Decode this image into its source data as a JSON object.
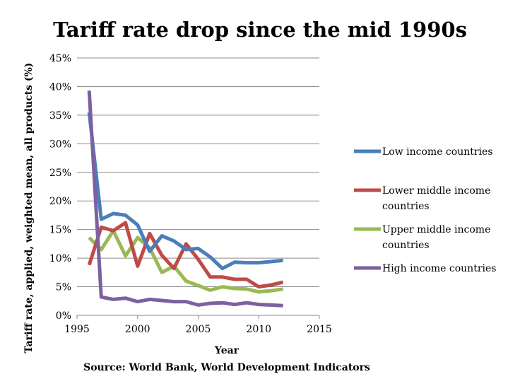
{
  "chart_data": {
    "type": "line",
    "title": "Tariff rate drop since the mid 1990s",
    "xlabel": "Year",
    "ylabel": "Tariff rate, applied, weighted mean, all products (%)",
    "source": "Source: World Bank, World Development Indicators",
    "xlim": [
      1995,
      2015
    ],
    "ylim": [
      0,
      45
    ],
    "x_ticks": [
      1995,
      2000,
      2005,
      2010,
      2015
    ],
    "y_ticks": [
      0,
      5,
      10,
      15,
      20,
      25,
      30,
      35,
      40,
      45
    ],
    "y_tick_labels": [
      "0%",
      "5%",
      "10%",
      "15%",
      "20%",
      "25%",
      "30%",
      "35%",
      "40%",
      "45%"
    ],
    "grid": "horizontal",
    "legend_position": "right",
    "x": [
      1996,
      1997,
      1998,
      1999,
      2000,
      2001,
      2002,
      2003,
      2004,
      2005,
      2006,
      2007,
      2008,
      2009,
      2010,
      2011,
      2012
    ],
    "series": [
      {
        "name": "Low income countries",
        "color": "#4a7ebb",
        "values": [
          35.5,
          16.8,
          17.8,
          17.5,
          15.8,
          11.2,
          13.9,
          13.0,
          11.5,
          11.7,
          10.2,
          8.2,
          9.3,
          9.2,
          9.2,
          9.4,
          9.6
        ]
      },
      {
        "name": "Lower middle income countries",
        "color": "#be4b48",
        "values": [
          8.8,
          15.4,
          14.8,
          16.2,
          8.6,
          14.3,
          10.5,
          8.2,
          12.5,
          9.8,
          6.7,
          6.7,
          6.3,
          6.3,
          5.0,
          5.3,
          5.8
        ]
      },
      {
        "name": "Upper middle income countries",
        "color": "#98b954",
        "values": [
          13.6,
          11.5,
          14.8,
          10.4,
          13.6,
          11.8,
          7.5,
          8.6,
          6.0,
          5.2,
          4.4,
          5.0,
          4.7,
          4.6,
          4.1,
          4.3,
          4.6
        ]
      },
      {
        "name": "High income countries",
        "color": "#7d60a0",
        "values": [
          39.3,
          3.2,
          2.8,
          3.0,
          2.4,
          2.8,
          2.6,
          2.4,
          2.4,
          1.8,
          2.1,
          2.2,
          1.9,
          2.2,
          1.9,
          1.8,
          1.7
        ]
      }
    ]
  }
}
